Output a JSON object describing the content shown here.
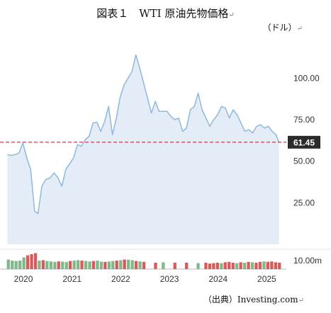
{
  "title": "図表１　WTI 原油先物価格",
  "unit": "（ドル）",
  "source": "（出典）Investing.com",
  "return_mark": "↵",
  "chart_data": {
    "type": "area",
    "xlabel": "",
    "ylabel": "",
    "ylim": [
      0,
      130
    ],
    "y_ticks": [
      25,
      50,
      75,
      100
    ],
    "y_tick_labels": [
      "25.00",
      "50.00",
      "75.00",
      "100.00"
    ],
    "x_tick_labels": [
      "2020",
      "2021",
      "2022",
      "2023",
      "2024",
      "2025"
    ],
    "x_tick_years": [
      2020,
      2021,
      2022,
      2023,
      2024,
      2025
    ],
    "current_value": 61.45,
    "current_value_label": "61.45",
    "volume_label": "10.00m",
    "series": [
      {
        "x": [
          2019.72,
          2019.8,
          2019.88,
          2019.96,
          2020.04,
          2020.12,
          2020.2,
          2020.28,
          2020.35,
          2020.43,
          2020.51,
          2020.6,
          2020.68,
          2020.76,
          2020.84,
          2020.92,
          2021.0,
          2021.08,
          2021.16,
          2021.24,
          2021.32,
          2021.4,
          2021.48,
          2021.56,
          2021.64,
          2021.72,
          2021.8,
          2021.88,
          2021.96,
          2022.04,
          2022.12,
          2022.2,
          2022.28,
          2022.36,
          2022.44,
          2022.52,
          2022.6,
          2022.68,
          2022.76,
          2022.84,
          2022.92,
          2023.0,
          2023.08,
          2023.16,
          2023.24,
          2023.32,
          2023.4,
          2023.48,
          2023.56,
          2023.64,
          2023.72,
          2023.8,
          2023.88,
          2023.96,
          2024.04,
          2024.12,
          2024.2,
          2024.28,
          2024.36,
          2024.44,
          2024.52,
          2024.6,
          2024.68,
          2024.76,
          2024.84,
          2024.92,
          2025.0,
          2025.08,
          2025.16,
          2025.24,
          2025.3
        ],
        "values": [
          54,
          53.5,
          54,
          55,
          61,
          52,
          45,
          20,
          18.5,
          35,
          39,
          40,
          43,
          40,
          35,
          45,
          48.5,
          52,
          60,
          59,
          63,
          65,
          73,
          73.5,
          68,
          74,
          83,
          66,
          76,
          89,
          96,
          100,
          104,
          114,
          106,
          97,
          88,
          79,
          86,
          80,
          80,
          80,
          77,
          75,
          76,
          68,
          70,
          81,
          83,
          91,
          81,
          76,
          71,
          75,
          78,
          83,
          82,
          76,
          81,
          78,
          73,
          68,
          69,
          67,
          71,
          72,
          70,
          71,
          68,
          66,
          61.45
        ]
      }
    ],
    "volume": [
      45,
      40,
      38,
      40,
      55,
      65,
      70,
      75,
      40,
      42,
      38,
      36,
      34,
      36,
      35,
      33,
      38,
      40,
      42,
      40,
      38,
      36,
      38,
      40,
      35,
      34,
      36,
      38,
      40,
      42,
      45,
      44,
      42,
      38,
      36,
      34,
      0,
      0,
      30,
      0,
      32,
      0,
      0,
      30,
      0,
      0,
      30,
      0,
      0,
      28,
      0,
      30,
      26,
      28,
      30,
      28,
      32,
      34,
      30,
      28,
      32,
      30,
      34,
      32,
      30,
      34,
      36,
      34,
      36,
      32,
      30
    ],
    "volume_colors": [
      "#7fb88a",
      "#7fb88a",
      "#7fb88a",
      "#7fb88a",
      "#7fb88a",
      "#d85a5a",
      "#d85a5a",
      "#d85a5a",
      "#7fb88a",
      "#d85a5a",
      "#7fb88a",
      "#7fb88a",
      "#7fb88a",
      "#d85a5a",
      "#7fb88a",
      "#7fb88a",
      "#d85a5a",
      "#7fb88a",
      "#7fb88a",
      "#d85a5a",
      "#7fb88a",
      "#7fb88a",
      "#d85a5a",
      "#7fb88a",
      "#7fb88a",
      "#d85a5a",
      "#7fb88a",
      "#7fb88a",
      "#d85a5a",
      "#7fb88a",
      "#d85a5a",
      "#7fb88a",
      "#7fb88a",
      "#d85a5a",
      "#7fb88a",
      "#d85a5a",
      "#7fb88a",
      "#7fb88a",
      "#d85a5a",
      "#7fb88a",
      "#7fb88a",
      "#7fb88a",
      "#7fb88a",
      "#d85a5a",
      "#7fb88a",
      "#7fb88a",
      "#d85a5a",
      "#7fb88a",
      "#7fb88a",
      "#7fb88a",
      "#7fb88a",
      "#d85a5a",
      "#d85a5a",
      "#d85a5a",
      "#d85a5a",
      "#7fb88a",
      "#d85a5a",
      "#d85a5a",
      "#d85a5a",
      "#7fb88a",
      "#d85a5a",
      "#7fb88a",
      "#d85a5a",
      "#7fb88a",
      "#d85a5a",
      "#d85a5a",
      "#7fb88a",
      "#d85a5a",
      "#d85a5a",
      "#d85a5a",
      "#d85a5a"
    ],
    "colors": {
      "line": "#8fb8dc",
      "fill": "#e4edf7",
      "ref_line": "#cc2222",
      "badge": "#2b2b2b"
    },
    "grid": false
  }
}
